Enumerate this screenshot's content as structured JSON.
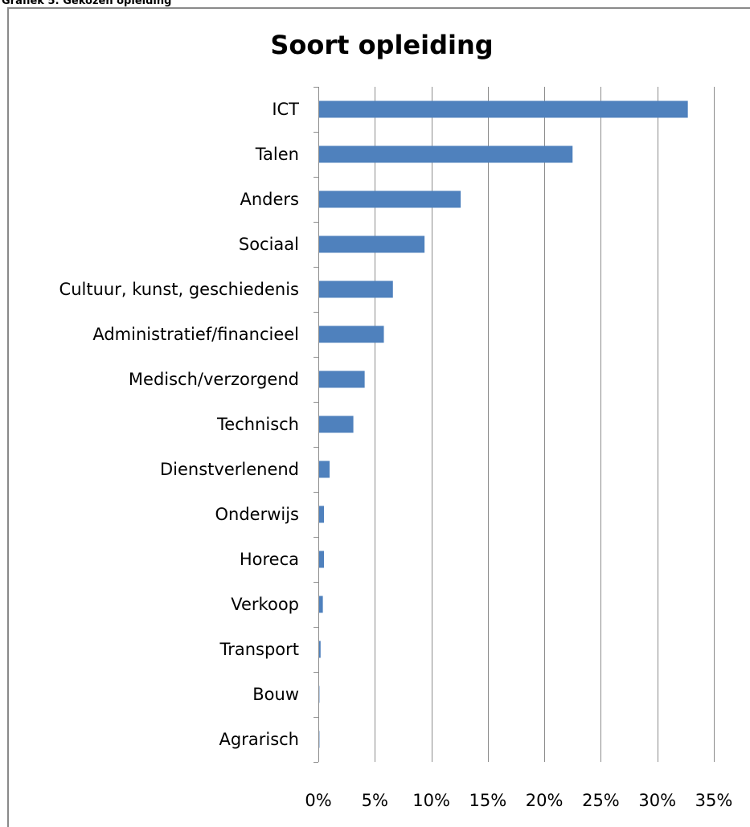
{
  "caption": "Grafiek 5: Gekozen opleiding",
  "colors": {
    "bar": "#4f81bd",
    "grid": "#8c8c8c",
    "axis": "#8c8c8c"
  },
  "chart_data": {
    "type": "bar",
    "orientation": "horizontal",
    "title": "Soort opleiding",
    "xlabel": "",
    "ylabel": "",
    "categories": [
      "ICT",
      "Talen",
      "Anders",
      "Sociaal",
      "Cultuur, kunst, geschiedenis",
      "Administratief/financieel",
      "Medisch/verzorgend",
      "Technisch",
      "Dienstverlenend",
      "Onderwijs",
      "Horeca",
      "Verkoop",
      "Transport",
      "Bouw",
      "Agrarisch"
    ],
    "values": [
      32.7,
      22.5,
      12.6,
      9.4,
      6.6,
      5.8,
      4.1,
      3.1,
      1.0,
      0.5,
      0.5,
      0.4,
      0.2,
      0.1,
      0.1
    ],
    "unit": "%",
    "xlim": [
      0,
      35
    ],
    "ticks": [
      0,
      5,
      10,
      15,
      20,
      25,
      30,
      35
    ],
    "tick_labels": [
      "0%",
      "5%",
      "10%",
      "15%",
      "20%",
      "25%",
      "30%",
      "35%"
    ],
    "grid": "vertical",
    "legend": "none"
  }
}
